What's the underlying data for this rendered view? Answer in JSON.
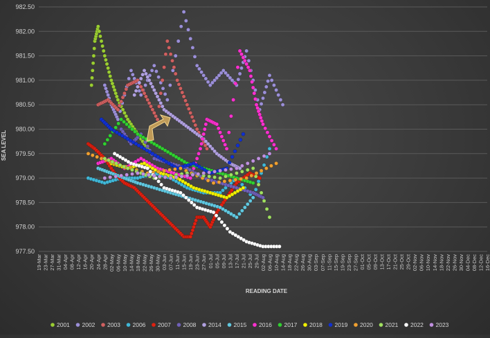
{
  "chart_data": {
    "type": "scatter",
    "title": "",
    "xlabel": "READING DATE",
    "ylabel": "SEA LEVEL",
    "ylim": [
      977.5,
      982.5
    ],
    "yticks": [
      "977.50",
      "978.00",
      "978.50",
      "979.00",
      "979.50",
      "980.00",
      "980.50",
      "981.00",
      "981.50",
      "982.00",
      "982.50"
    ],
    "x_tick_labels": [
      "19-Mar",
      "23-Mar",
      "27-Mar",
      "31-Mar",
      "04-Apr",
      "08-Apr",
      "12-Apr",
      "16-Apr",
      "20-Apr",
      "24-Apr",
      "28-Apr",
      "02-May",
      "06-May",
      "10-May",
      "14-May",
      "18-May",
      "22-May",
      "26-May",
      "30-May",
      "03-Jun",
      "07-Jun",
      "11-Jun",
      "15-Jun",
      "19-Jun",
      "23-Jun",
      "27-Jun",
      "01-Jul",
      "05-Jul",
      "09-Jul",
      "13-Jul",
      "17-Jul",
      "21-Jul",
      "25-Jul",
      "29-Jul",
      "02-Aug",
      "06-Aug",
      "10-Aug",
      "14-Aug",
      "18-Aug",
      "22-Aug",
      "26-Aug",
      "30-Aug",
      "03-Sep",
      "07-Sep",
      "11-Sep",
      "15-Sep",
      "19-Sep",
      "23-Sep",
      "27-Sep",
      "01-Oct",
      "05-Oct",
      "09-Oct",
      "13-Oct",
      "17-Oct",
      "21-Oct",
      "25-Oct",
      "29-Oct",
      "02-Nov",
      "06-Nov",
      "10-Nov",
      "14-Nov",
      "18-Nov",
      "22-Nov",
      "26-Nov",
      "30-Nov",
      "04-Dec",
      "08-Dec",
      "12-Dec",
      "16-Dec"
    ],
    "grid": true,
    "legend_position": "bottom",
    "annotation": {
      "text": "",
      "color": "#f0c060"
    },
    "series": [
      {
        "name": "2001",
        "color": "#9acd32",
        "points": [
          [
            32,
            980.9
          ],
          [
            34,
            981.8
          ],
          [
            36,
            982.1
          ],
          [
            40,
            981.5
          ],
          [
            44,
            981.0
          ],
          [
            48,
            980.6
          ],
          [
            54,
            980.2
          ],
          [
            60,
            979.9
          ],
          [
            66,
            979.6
          ]
        ]
      },
      {
        "name": "2002",
        "color": "#9b8fd8",
        "points": [
          [
            40,
            980.9
          ],
          [
            44,
            980.5
          ],
          [
            48,
            980.2
          ],
          [
            56,
            981.2
          ],
          [
            62,
            980.7
          ],
          [
            70,
            981.3
          ],
          [
            78,
            980.6
          ],
          [
            88,
            982.4
          ],
          [
            96,
            981.3
          ],
          [
            104,
            980.9
          ],
          [
            112,
            981.2
          ],
          [
            120,
            980.9
          ],
          [
            126,
            981.6
          ],
          [
            134,
            980.4
          ],
          [
            140,
            981.1
          ],
          [
            148,
            980.5
          ]
        ]
      },
      {
        "name": "2003",
        "color": "#d06060",
        "points": [
          [
            36,
            980.5
          ],
          [
            42,
            980.6
          ],
          [
            48,
            980.4
          ],
          [
            54,
            980.9
          ],
          [
            60,
            981.0
          ],
          [
            66,
            980.6
          ],
          [
            72,
            980.2
          ],
          [
            78,
            981.8
          ],
          [
            84,
            981.0
          ],
          [
            90,
            980.5
          ],
          [
            96,
            980.0
          ],
          [
            102,
            979.6
          ]
        ]
      },
      {
        "name": "2006",
        "color": "#40b8d8",
        "points": [
          [
            30,
            979.0
          ],
          [
            40,
            978.9
          ],
          [
            50,
            979.0
          ],
          [
            60,
            979.0
          ],
          [
            70,
            979.1
          ],
          [
            80,
            979.0
          ],
          [
            90,
            978.8
          ],
          [
            100,
            978.7
          ],
          [
            110,
            978.7
          ],
          [
            120,
            979.0
          ],
          [
            130,
            978.6
          ],
          [
            140,
            979.6
          ]
        ]
      },
      {
        "name": "2007",
        "color": "#e02010",
        "points": [
          [
            30,
            979.7
          ],
          [
            34,
            979.6
          ],
          [
            40,
            979.4
          ],
          [
            46,
            979.1
          ],
          [
            52,
            978.9
          ],
          [
            58,
            978.8
          ],
          [
            64,
            978.6
          ],
          [
            70,
            978.4
          ],
          [
            76,
            978.2
          ],
          [
            82,
            978.0
          ],
          [
            88,
            977.8
          ],
          [
            92,
            977.8
          ],
          [
            96,
            978.2
          ],
          [
            100,
            978.2
          ],
          [
            104,
            978.0
          ],
          [
            108,
            978.3
          ],
          [
            114,
            978.6
          ],
          [
            120,
            978.9
          ],
          [
            128,
            979.1
          ],
          [
            134,
            979.0
          ]
        ]
      },
      {
        "name": "2008",
        "color": "#7060b8",
        "points": [
          [
            50,
            980.0
          ],
          [
            56,
            979.7
          ],
          [
            62,
            979.9
          ],
          [
            70,
            979.4
          ],
          [
            80,
            979.3
          ],
          [
            90,
            979.2
          ],
          [
            100,
            979.0
          ],
          [
            110,
            978.9
          ],
          [
            120,
            978.8
          ],
          [
            130,
            978.7
          ],
          [
            136,
            978.6
          ]
        ]
      },
      {
        "name": "2014",
        "color": "#b0a0e0",
        "points": [
          [
            58,
            980.7
          ],
          [
            64,
            981.2
          ],
          [
            70,
            980.8
          ],
          [
            76,
            980.4
          ],
          [
            84,
            980.2
          ],
          [
            92,
            980.0
          ],
          [
            100,
            979.8
          ],
          [
            108,
            979.5
          ],
          [
            116,
            979.3
          ],
          [
            122,
            979.2
          ]
        ]
      },
      {
        "name": "2015",
        "color": "#60c8e0",
        "points": [
          [
            36,
            979.2
          ],
          [
            44,
            979.1
          ],
          [
            52,
            979.0
          ],
          [
            60,
            978.9
          ],
          [
            70,
            978.8
          ],
          [
            80,
            978.7
          ],
          [
            90,
            978.6
          ],
          [
            100,
            978.5
          ],
          [
            110,
            978.4
          ],
          [
            120,
            978.2
          ],
          [
            130,
            978.6
          ]
        ]
      },
      {
        "name": "2016",
        "color": "#ff30d0",
        "points": [
          [
            36,
            979.3
          ],
          [
            44,
            979.4
          ],
          [
            52,
            979.2
          ],
          [
            62,
            979.4
          ],
          [
            72,
            979.2
          ],
          [
            82,
            979.1
          ],
          [
            92,
            979.0
          ],
          [
            98,
            979.6
          ],
          [
            102,
            980.2
          ],
          [
            108,
            980.1
          ],
          [
            114,
            979.6
          ],
          [
            122,
            981.6
          ],
          [
            128,
            981.2
          ],
          [
            132,
            980.5
          ],
          [
            136,
            980.1
          ],
          [
            144,
            979.6
          ]
        ]
      },
      {
        "name": "2017",
        "color": "#30d030",
        "points": [
          [
            40,
            979.7
          ],
          [
            50,
            980.2
          ],
          [
            60,
            979.9
          ],
          [
            70,
            979.7
          ],
          [
            80,
            979.5
          ],
          [
            90,
            979.3
          ],
          [
            100,
            979.2
          ],
          [
            110,
            979.1
          ],
          [
            120,
            979.0
          ],
          [
            130,
            978.9
          ]
        ]
      },
      {
        "name": "2018",
        "color": "#f0f000",
        "points": [
          [
            44,
            979.3
          ],
          [
            54,
            979.2
          ],
          [
            64,
            979.3
          ],
          [
            74,
            979.1
          ],
          [
            84,
            979.0
          ],
          [
            94,
            978.8
          ],
          [
            104,
            978.7
          ],
          [
            114,
            978.6
          ],
          [
            124,
            978.8
          ]
        ]
      },
      {
        "name": "2019",
        "color": "#1030d0",
        "points": [
          [
            38,
            980.2
          ],
          [
            44,
            980.0
          ],
          [
            54,
            979.8
          ],
          [
            64,
            979.6
          ],
          [
            74,
            979.4
          ],
          [
            84,
            979.2
          ],
          [
            94,
            979.3
          ],
          [
            104,
            979.1
          ],
          [
            114,
            979.2
          ],
          [
            124,
            979.9
          ]
        ]
      },
      {
        "name": "2020",
        "color": "#f0a030",
        "points": [
          [
            30,
            979.5
          ],
          [
            46,
            979.3
          ],
          [
            66,
            979.1
          ],
          [
            86,
            979.2
          ],
          [
            106,
            978.9
          ],
          [
            126,
            979.0
          ],
          [
            144,
            979.3
          ]
        ]
      },
      {
        "name": "2021",
        "color": "#a0e060",
        "points": [
          [
            40,
            979.4
          ],
          [
            54,
            979.2
          ],
          [
            70,
            979.0
          ],
          [
            90,
            979.1
          ],
          [
            110,
            979.0
          ],
          [
            130,
            979.2
          ],
          [
            140,
            978.2
          ]
        ]
      },
      {
        "name": "2022",
        "color": "#ffffff",
        "points": [
          [
            46,
            979.5
          ],
          [
            56,
            979.3
          ],
          [
            66,
            979.2
          ],
          [
            76,
            978.8
          ],
          [
            86,
            978.7
          ],
          [
            96,
            978.4
          ],
          [
            106,
            978.3
          ],
          [
            116,
            977.9
          ],
          [
            126,
            977.7
          ],
          [
            136,
            977.6
          ],
          [
            146,
            977.6
          ]
        ]
      },
      {
        "name": "2023",
        "color": "#c090e0",
        "points": [
          [
            40,
            979.0
          ],
          [
            60,
            979.1
          ],
          [
            80,
            979.0
          ],
          [
            100,
            979.1
          ],
          [
            120,
            979.2
          ],
          [
            140,
            979.5
          ]
        ]
      }
    ]
  }
}
